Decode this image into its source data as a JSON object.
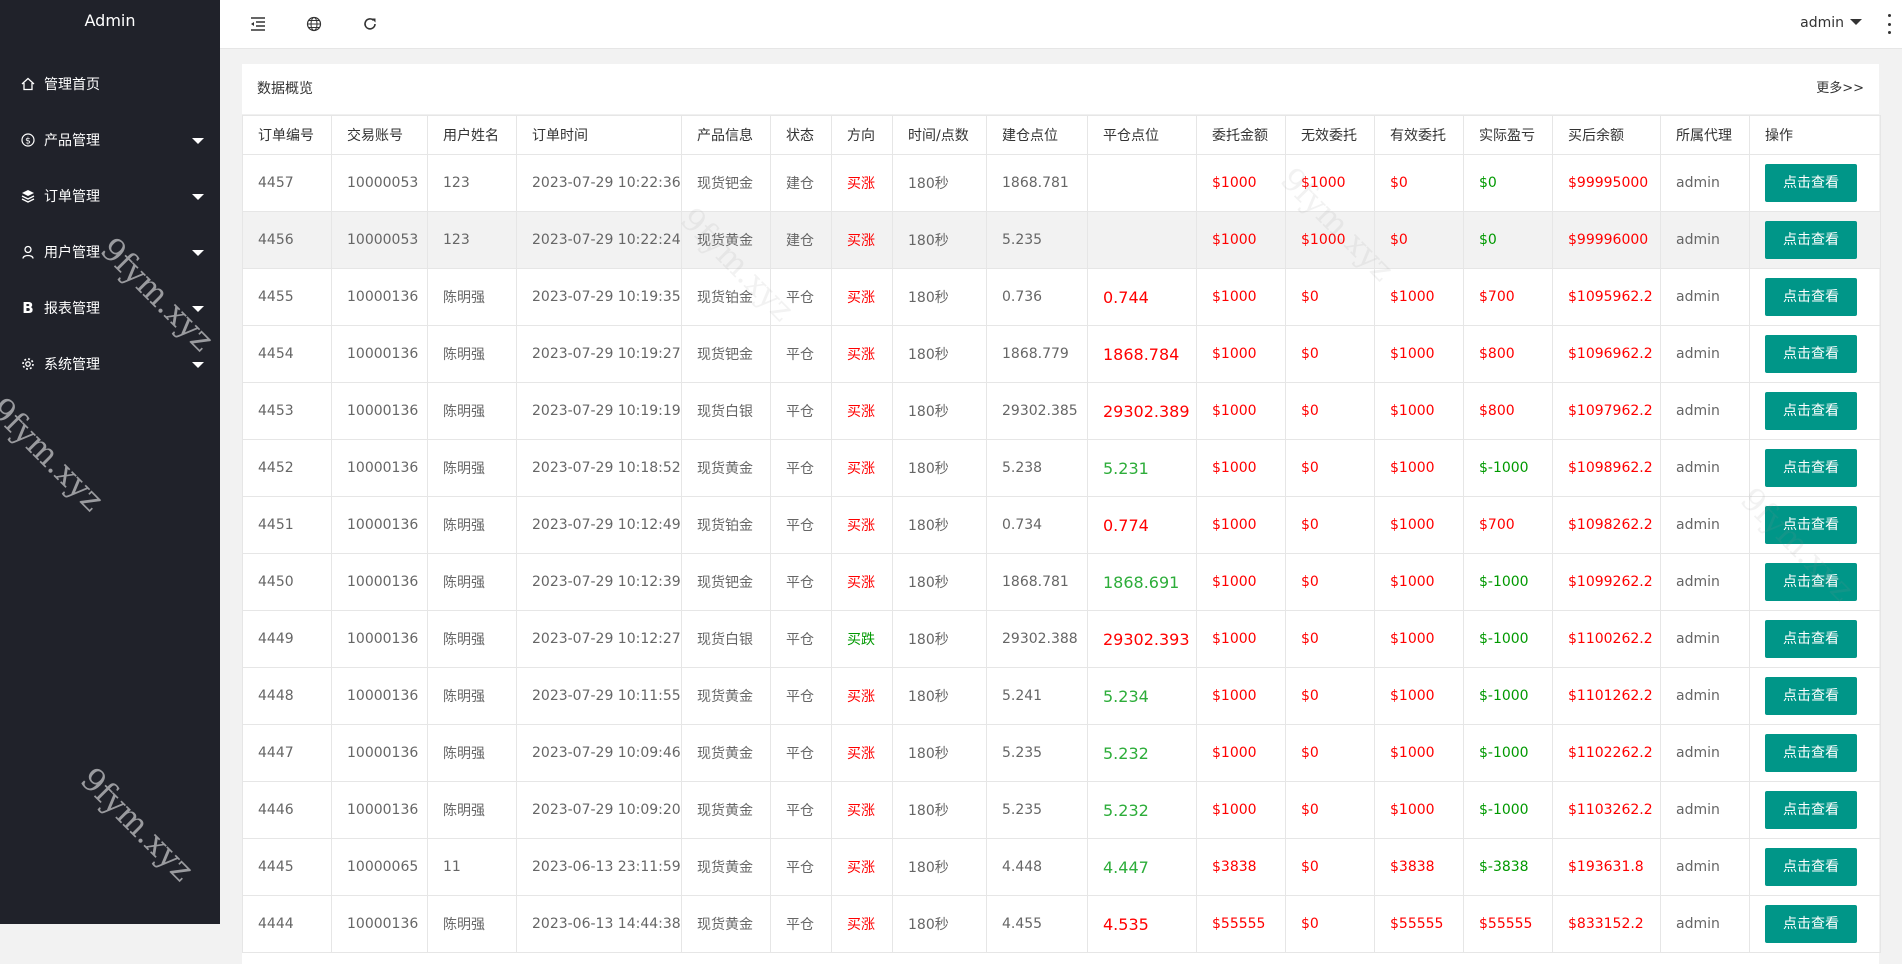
{
  "sidebar": {
    "brand": "Admin",
    "items": [
      {
        "label": "管理首页",
        "icon": "home-icon",
        "has_caret": false
      },
      {
        "label": "产品管理",
        "icon": "dollar-circle-icon",
        "has_caret": true
      },
      {
        "label": "订单管理",
        "icon": "layers-icon",
        "has_caret": true
      },
      {
        "label": "用户管理",
        "icon": "user-icon",
        "has_caret": true
      },
      {
        "label": "报表管理",
        "icon": "bold-b-icon",
        "has_caret": true
      },
      {
        "label": "系统管理",
        "icon": "gear-icon",
        "has_caret": true
      }
    ]
  },
  "header": {
    "icons": [
      "menu-fold-icon",
      "globe-icon",
      "refresh-icon"
    ],
    "user": "admin"
  },
  "card": {
    "title": "数据概览",
    "more": "更多>>"
  },
  "table": {
    "columns": [
      "订单编号",
      "交易账号",
      "用户姓名",
      "订单时间",
      "产品信息",
      "状态",
      "方向",
      "时间/点数",
      "建仓点位",
      "平仓点位",
      "委托金额",
      "无效委托",
      "有效委托",
      "实际盈亏",
      "买后余额",
      "所属代理",
      "操作"
    ],
    "rows": [
      {
        "id": "4457",
        "account": "10000053",
        "name": "123",
        "time": "2023-07-29 10:22:36",
        "product": "现货钯金",
        "status": "建仓",
        "direction": "买涨",
        "duration": "180秒",
        "open": "1868.781",
        "close": "",
        "entrust": "$1000",
        "invalid": "$1000",
        "valid": "$0",
        "pnl": "$0",
        "balance": "$99995000",
        "agent": "admin",
        "action": "点击查看"
      },
      {
        "id": "4456",
        "account": "10000053",
        "name": "123",
        "time": "2023-07-29 10:22:24",
        "product": "现货黄金",
        "status": "建仓",
        "direction": "买涨",
        "duration": "180秒",
        "open": "5.235",
        "close": "",
        "entrust": "$1000",
        "invalid": "$1000",
        "valid": "$0",
        "pnl": "$0",
        "balance": "$99996000",
        "agent": "admin",
        "action": "点击查看"
      },
      {
        "id": "4455",
        "account": "10000136",
        "name": "陈明强",
        "time": "2023-07-29 10:19:35",
        "product": "现货铂金",
        "status": "平仓",
        "direction": "买涨",
        "duration": "180秒",
        "open": "0.736",
        "close": "0.744",
        "entrust": "$1000",
        "invalid": "$0",
        "valid": "$1000",
        "pnl": "$700",
        "balance": "$1095962.2",
        "agent": "admin",
        "action": "点击查看"
      },
      {
        "id": "4454",
        "account": "10000136",
        "name": "陈明强",
        "time": "2023-07-29 10:19:27",
        "product": "现货钯金",
        "status": "平仓",
        "direction": "买涨",
        "duration": "180秒",
        "open": "1868.779",
        "close": "1868.784",
        "entrust": "$1000",
        "invalid": "$0",
        "valid": "$1000",
        "pnl": "$800",
        "balance": "$1096962.2",
        "agent": "admin",
        "action": "点击查看"
      },
      {
        "id": "4453",
        "account": "10000136",
        "name": "陈明强",
        "time": "2023-07-29 10:19:19",
        "product": "现货白银",
        "status": "平仓",
        "direction": "买涨",
        "duration": "180秒",
        "open": "29302.385",
        "close": "29302.389",
        "entrust": "$1000",
        "invalid": "$0",
        "valid": "$1000",
        "pnl": "$800",
        "balance": "$1097962.2",
        "agent": "admin",
        "action": "点击查看"
      },
      {
        "id": "4452",
        "account": "10000136",
        "name": "陈明强",
        "time": "2023-07-29 10:18:52",
        "product": "现货黄金",
        "status": "平仓",
        "direction": "买涨",
        "duration": "180秒",
        "open": "5.238",
        "close": "5.231",
        "entrust": "$1000",
        "invalid": "$0",
        "valid": "$1000",
        "pnl": "$-1000",
        "balance": "$1098962.2",
        "agent": "admin",
        "action": "点击查看"
      },
      {
        "id": "4451",
        "account": "10000136",
        "name": "陈明强",
        "time": "2023-07-29 10:12:49",
        "product": "现货铂金",
        "status": "平仓",
        "direction": "买涨",
        "duration": "180秒",
        "open": "0.734",
        "close": "0.774",
        "entrust": "$1000",
        "invalid": "$0",
        "valid": "$1000",
        "pnl": "$700",
        "balance": "$1098262.2",
        "agent": "admin",
        "action": "点击查看"
      },
      {
        "id": "4450",
        "account": "10000136",
        "name": "陈明强",
        "time": "2023-07-29 10:12:39",
        "product": "现货钯金",
        "status": "平仓",
        "direction": "买涨",
        "duration": "180秒",
        "open": "1868.781",
        "close": "1868.691",
        "entrust": "$1000",
        "invalid": "$0",
        "valid": "$1000",
        "pnl": "$-1000",
        "balance": "$1099262.2",
        "agent": "admin",
        "action": "点击查看"
      },
      {
        "id": "4449",
        "account": "10000136",
        "name": "陈明强",
        "time": "2023-07-29 10:12:27",
        "product": "现货白银",
        "status": "平仓",
        "direction": "买跌",
        "duration": "180秒",
        "open": "29302.388",
        "close": "29302.393",
        "entrust": "$1000",
        "invalid": "$0",
        "valid": "$1000",
        "pnl": "$-1000",
        "balance": "$1100262.2",
        "agent": "admin",
        "action": "点击查看"
      },
      {
        "id": "4448",
        "account": "10000136",
        "name": "陈明强",
        "time": "2023-07-29 10:11:55",
        "product": "现货黄金",
        "status": "平仓",
        "direction": "买涨",
        "duration": "180秒",
        "open": "5.241",
        "close": "5.234",
        "entrust": "$1000",
        "invalid": "$0",
        "valid": "$1000",
        "pnl": "$-1000",
        "balance": "$1101262.2",
        "agent": "admin",
        "action": "点击查看"
      },
      {
        "id": "4447",
        "account": "10000136",
        "name": "陈明强",
        "time": "2023-07-29 10:09:46",
        "product": "现货黄金",
        "status": "平仓",
        "direction": "买涨",
        "duration": "180秒",
        "open": "5.235",
        "close": "5.232",
        "entrust": "$1000",
        "invalid": "$0",
        "valid": "$1000",
        "pnl": "$-1000",
        "balance": "$1102262.2",
        "agent": "admin",
        "action": "点击查看"
      },
      {
        "id": "4446",
        "account": "10000136",
        "name": "陈明强",
        "time": "2023-07-29 10:09:20",
        "product": "现货黄金",
        "status": "平仓",
        "direction": "买涨",
        "duration": "180秒",
        "open": "5.235",
        "close": "5.232",
        "entrust": "$1000",
        "invalid": "$0",
        "valid": "$1000",
        "pnl": "$-1000",
        "balance": "$1103262.2",
        "agent": "admin",
        "action": "点击查看"
      },
      {
        "id": "4445",
        "account": "10000065",
        "name": "11",
        "time": "2023-06-13 23:11:59",
        "product": "现货黄金",
        "status": "平仓",
        "direction": "买涨",
        "duration": "180秒",
        "open": "4.448",
        "close": "4.447",
        "entrust": "$3838",
        "invalid": "$0",
        "valid": "$3838",
        "pnl": "$-3838",
        "balance": "$193631.8",
        "agent": "admin",
        "action": "点击查看"
      },
      {
        "id": "4444",
        "account": "10000136",
        "name": "陈明强",
        "time": "2023-06-13 14:44:38",
        "product": "现货黄金",
        "status": "平仓",
        "direction": "买涨",
        "duration": "180秒",
        "open": "4.455",
        "close": "4.535",
        "entrust": "$55555",
        "invalid": "$0",
        "valid": "$55555",
        "pnl": "$55555",
        "balance": "$833152.2",
        "agent": "admin",
        "action": "点击查看"
      }
    ]
  },
  "watermark": "9fym.xyz",
  "colors": {
    "sidebar_bg": "#20222a",
    "button": "#009688",
    "profit_red": "#ff0000",
    "loss_green": "#009900",
    "close_green": "#2dad3a"
  }
}
